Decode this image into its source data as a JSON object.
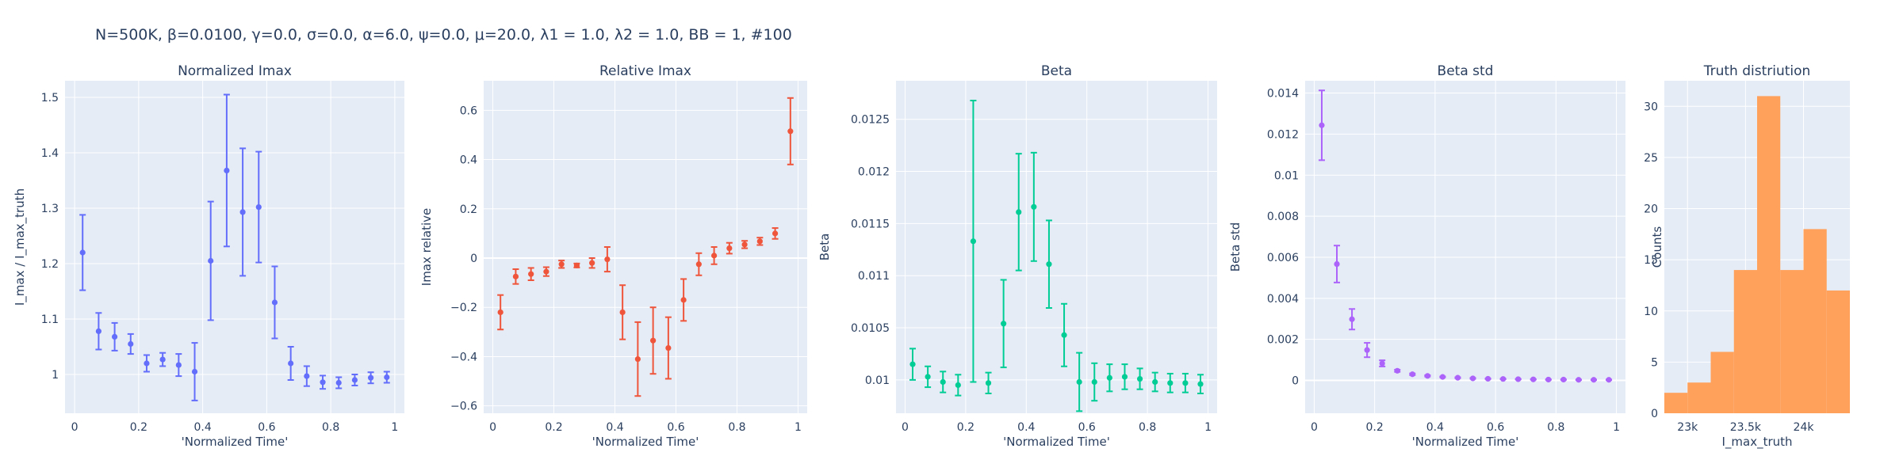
{
  "figure": {
    "title": "N=500K, β=0.0100, γ=0.0, σ=0.0,  α=6.0, ψ=0.0, μ=20.0, λ1 = 1.0, λ2 = 1.0, BB = 1, #100"
  },
  "chart_data": [
    {
      "id": "normalized-imax",
      "type": "scatter",
      "title": "Normalized Imax",
      "xlabel": "'Normalized Time'",
      "ylabel": "I_max / I_max_truth",
      "xlim": [
        -0.03,
        1.03
      ],
      "ylim": [
        0.93,
        1.53
      ],
      "xticks": [
        0,
        0.2,
        0.4,
        0.6,
        0.8,
        1
      ],
      "xtick_labels": [
        "0",
        "0.2",
        "0.4",
        "0.6",
        "0.8",
        "1"
      ],
      "yticks": [
        1,
        1.1,
        1.2,
        1.3,
        1.4,
        1.5
      ],
      "ytick_labels": [
        "1",
        "1.1",
        "1.2",
        "1.3",
        "1.4",
        "1.5"
      ],
      "color": "#636efa",
      "x": [
        0.025,
        0.075,
        0.125,
        0.175,
        0.225,
        0.275,
        0.325,
        0.375,
        0.425,
        0.475,
        0.525,
        0.575,
        0.625,
        0.675,
        0.725,
        0.775,
        0.825,
        0.875,
        0.925,
        0.975
      ],
      "y": [
        1.22,
        1.078,
        1.068,
        1.055,
        1.02,
        1.027,
        1.017,
        1.005,
        1.205,
        1.368,
        1.293,
        1.302,
        1.13,
        1.02,
        0.997,
        0.986,
        0.985,
        0.99,
        0.994,
        0.995
      ],
      "err": [
        0.068,
        0.033,
        0.025,
        0.018,
        0.015,
        0.012,
        0.02,
        0.052,
        0.107,
        0.137,
        0.115,
        0.1,
        0.065,
        0.03,
        0.018,
        0.012,
        0.01,
        0.01,
        0.01,
        0.01
      ]
    },
    {
      "id": "relative-imax",
      "type": "scatter",
      "title": "Relative Imax",
      "xlabel": "'Normalized Time'",
      "ylabel": "Imax relative",
      "xlim": [
        -0.03,
        1.03
      ],
      "ylim": [
        -0.63,
        0.72
      ],
      "xticks": [
        0,
        0.2,
        0.4,
        0.6,
        0.8,
        1
      ],
      "xtick_labels": [
        "0",
        "0.2",
        "0.4",
        "0.6",
        "0.8",
        "1"
      ],
      "yticks": [
        -0.6,
        -0.4,
        -0.2,
        0,
        0.2,
        0.4,
        0.6
      ],
      "ytick_labels": [
        "−0.6",
        "−0.4",
        "−0.2",
        "0",
        "0.2",
        "0.4",
        "0.6"
      ],
      "zeroline": true,
      "color": "#ef553b",
      "x": [
        0.025,
        0.075,
        0.125,
        0.175,
        0.225,
        0.275,
        0.325,
        0.375,
        0.425,
        0.475,
        0.525,
        0.575,
        0.625,
        0.675,
        0.725,
        0.775,
        0.825,
        0.875,
        0.925,
        0.975
      ],
      "y": [
        -0.22,
        -0.075,
        -0.065,
        -0.055,
        -0.025,
        -0.03,
        -0.02,
        -0.005,
        -0.22,
        -0.41,
        -0.335,
        -0.365,
        -0.17,
        -0.025,
        0.01,
        0.04,
        0.055,
        0.068,
        0.1,
        0.515
      ],
      "err": [
        0.07,
        0.03,
        0.025,
        0.018,
        0.015,
        0.008,
        0.02,
        0.05,
        0.11,
        0.15,
        0.135,
        0.125,
        0.085,
        0.045,
        0.035,
        0.022,
        0.015,
        0.015,
        0.022,
        0.135
      ]
    },
    {
      "id": "beta",
      "type": "scatter",
      "title": "Beta",
      "xlabel": "'Normalized Time'",
      "ylabel": "Beta",
      "xlim": [
        -0.03,
        1.03
      ],
      "ylim": [
        0.00968,
        0.01287
      ],
      "xticks": [
        0,
        0.2,
        0.4,
        0.6,
        0.8,
        1
      ],
      "xtick_labels": [
        "0",
        "0.2",
        "0.4",
        "0.6",
        "0.8",
        "1"
      ],
      "yticks": [
        0.01,
        0.0105,
        0.011,
        0.0115,
        0.012,
        0.0125
      ],
      "ytick_labels": [
        "0.01",
        "0.0105",
        "0.011",
        "0.0115",
        "0.012",
        "0.0125"
      ],
      "color": "#00cc96",
      "x": [
        0.025,
        0.075,
        0.125,
        0.175,
        0.225,
        0.275,
        0.325,
        0.375,
        0.425,
        0.475,
        0.525,
        0.575,
        0.625,
        0.675,
        0.725,
        0.775,
        0.825,
        0.875,
        0.925,
        0.975
      ],
      "y": [
        0.01015,
        0.01003,
        0.00998,
        0.00995,
        0.01133,
        0.00997,
        0.01054,
        0.01161,
        0.01166,
        0.01111,
        0.01043,
        0.00998,
        0.00998,
        0.01002,
        0.01003,
        0.01001,
        0.00998,
        0.00997,
        0.00997,
        0.00996
      ],
      "err": [
        0.00015,
        0.0001,
        0.0001,
        0.0001,
        0.00135,
        0.0001,
        0.00042,
        0.00056,
        0.00052,
        0.00042,
        0.0003,
        0.00028,
        0.00018,
        0.00013,
        0.00012,
        0.0001,
        9e-05,
        9e-05,
        9e-05,
        9e-05
      ]
    },
    {
      "id": "beta-std",
      "type": "scatter",
      "title": "Beta std",
      "xlabel": "'Normalized Time'",
      "ylabel": "Beta std",
      "xlim": [
        -0.03,
        1.03
      ],
      "ylim": [
        -0.0016,
        0.0146
      ],
      "xticks": [
        0,
        0.2,
        0.4,
        0.6,
        0.8,
        1
      ],
      "xtick_labels": [
        "0",
        "0.2",
        "0.4",
        "0.6",
        "0.8",
        "1"
      ],
      "yticks": [
        0,
        0.002,
        0.004,
        0.006,
        0.008,
        0.01,
        0.012,
        0.014
      ],
      "ytick_labels": [
        "0",
        "0.002",
        "0.004",
        "0.006",
        "0.008",
        "0.01",
        "0.012",
        "0.014"
      ],
      "zeroline": true,
      "color": "#ab63fa",
      "x": [
        0.025,
        0.075,
        0.125,
        0.175,
        0.225,
        0.275,
        0.325,
        0.375,
        0.425,
        0.475,
        0.525,
        0.575,
        0.625,
        0.675,
        0.725,
        0.775,
        0.825,
        0.875,
        0.925,
        0.975
      ],
      "y": [
        0.01243,
        0.00567,
        0.00298,
        0.00148,
        0.00083,
        0.00047,
        0.0003,
        0.00022,
        0.00017,
        0.00013,
        0.0001,
        8e-05,
        7e-05,
        6e-05,
        5e-05,
        4e-05,
        4e-05,
        3e-05,
        3e-05,
        3e-05
      ],
      "err": [
        0.0017,
        0.0009,
        0.0005,
        0.00035,
        0.00015,
        5e-05,
        4e-05,
        3e-05,
        2e-05,
        2e-05,
        2e-05,
        1e-05,
        1e-05,
        1e-05,
        1e-05,
        1e-05,
        1e-05,
        1e-05,
        1e-05,
        1e-05
      ]
    },
    {
      "id": "truth-distribution",
      "type": "bar",
      "title": "Truth distriution",
      "xlabel": "I_max_truth",
      "ylabel": "Counts",
      "xlim": [
        22800,
        24400
      ],
      "ylim": [
        0,
        32.5
      ],
      "xticks": [
        23000,
        23500,
        24000
      ],
      "xtick_labels": [
        "23k",
        "23.5k",
        "24k"
      ],
      "yticks": [
        0,
        5,
        10,
        15,
        20,
        25,
        30
      ],
      "ytick_labels": [
        "0",
        "5",
        "10",
        "15",
        "20",
        "25",
        "30"
      ],
      "color": "#ffa15a",
      "bin_edges": [
        22800,
        23000,
        23200,
        23400,
        23600,
        23800,
        24000,
        24200,
        24400
      ],
      "values": [
        2,
        3,
        6,
        14,
        31,
        14,
        18,
        12
      ]
    }
  ]
}
